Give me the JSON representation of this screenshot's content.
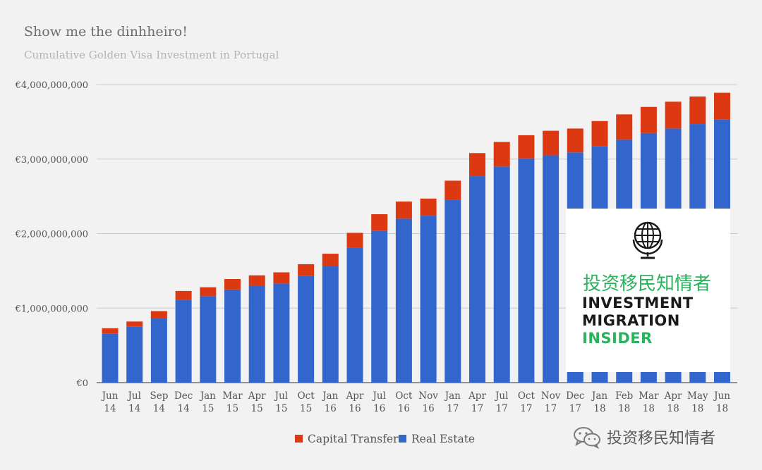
{
  "chart_data": {
    "type": "bar",
    "stacked": true,
    "title": "Show me the dinhheiro!",
    "subtitle": "Cumulative Golden Visa Investment in Portugal",
    "categories": [
      [
        "Jun",
        "14"
      ],
      [
        "Jul",
        "14"
      ],
      [
        "Sep",
        "14"
      ],
      [
        "Dec",
        "14"
      ],
      [
        "Jan",
        "15"
      ],
      [
        "Mar",
        "15"
      ],
      [
        "Apr",
        "15"
      ],
      [
        "Jul",
        "15"
      ],
      [
        "Oct",
        "15"
      ],
      [
        "Jan",
        "16"
      ],
      [
        "Apr",
        "16"
      ],
      [
        "Jul",
        "16"
      ],
      [
        "Oct",
        "16"
      ],
      [
        "Nov",
        "16"
      ],
      [
        "Jan",
        "17"
      ],
      [
        "Apr",
        "17"
      ],
      [
        "Jul",
        "17"
      ],
      [
        "Oct",
        "17"
      ],
      [
        "Nov",
        "17"
      ],
      [
        "Dec",
        "17"
      ],
      [
        "Jan",
        "18"
      ],
      [
        "Feb",
        "18"
      ],
      [
        "Mar",
        "18"
      ],
      [
        "Apr",
        "18"
      ],
      [
        "May",
        "18"
      ],
      [
        "Jun",
        "18"
      ]
    ],
    "series": [
      {
        "name": "Real Estate",
        "color": "#3366cc",
        "values": [
          660000000,
          750000000,
          860000000,
          1110000000,
          1160000000,
          1250000000,
          1300000000,
          1330000000,
          1430000000,
          1560000000,
          1810000000,
          2040000000,
          2200000000,
          2240000000,
          2450000000,
          2770000000,
          2900000000,
          3010000000,
          3050000000,
          3090000000,
          3170000000,
          3260000000,
          3350000000,
          3410000000,
          3470000000,
          3530000000
        ]
      },
      {
        "name": "Capital Transfer",
        "color": "#dc3912",
        "values": [
          70000000,
          70000000,
          100000000,
          120000000,
          120000000,
          140000000,
          140000000,
          150000000,
          160000000,
          170000000,
          200000000,
          220000000,
          230000000,
          230000000,
          260000000,
          310000000,
          330000000,
          310000000,
          330000000,
          320000000,
          340000000,
          340000000,
          350000000,
          360000000,
          370000000,
          360000000
        ]
      }
    ],
    "ylim": [
      0,
      4000000000
    ],
    "yticks": [
      0,
      1000000000,
      2000000000,
      3000000000,
      4000000000
    ],
    "ytick_labels": [
      "€0",
      "€1,000,000,000",
      "€2,000,000,000",
      "€3,000,000,000",
      "€4,000,000,000"
    ],
    "legend": [
      {
        "label": "Capital Transfer",
        "color": "#dc3912"
      },
      {
        "label": "Real Estate",
        "color": "#3366cc"
      }
    ],
    "legend_position": "bottom",
    "grid": true
  },
  "overlay": {
    "logo_cn": "投资移民知情者",
    "logo_line1": "INVESTMENT",
    "logo_line2": "MIGRATION",
    "logo_line3": "INSIDER"
  },
  "watermark": {
    "text": "投资移民知情者"
  }
}
